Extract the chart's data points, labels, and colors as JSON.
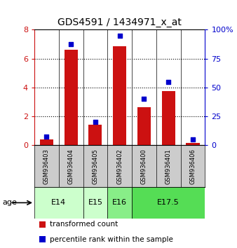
{
  "title": "GDS4591 / 1434971_x_at",
  "samples": [
    "GSM936403",
    "GSM936404",
    "GSM936405",
    "GSM936402",
    "GSM936400",
    "GSM936401",
    "GSM936406"
  ],
  "transformed_count": [
    0.4,
    6.6,
    1.4,
    6.85,
    2.65,
    3.75,
    0.15
  ],
  "percentile_rank": [
    7.5,
    87.5,
    20.0,
    95.0,
    40.0,
    55.0,
    5.0
  ],
  "age_groups": [
    {
      "label": "E14",
      "start": 0,
      "end": 2,
      "color": "#ccffcc"
    },
    {
      "label": "E15",
      "start": 2,
      "end": 3,
      "color": "#ccffcc"
    },
    {
      "label": "E16",
      "start": 3,
      "end": 4,
      "color": "#88ee88"
    },
    {
      "label": "E17.5",
      "start": 4,
      "end": 7,
      "color": "#55dd55"
    }
  ],
  "bar_color": "#cc1111",
  "dot_color": "#0000cc",
  "left_ylim": [
    0,
    8
  ],
  "right_ylim": [
    0,
    100
  ],
  "left_yticks": [
    0,
    2,
    4,
    6,
    8
  ],
  "right_yticks": [
    0,
    25,
    50,
    75,
    100
  ],
  "right_yticklabels": [
    "0",
    "25",
    "50",
    "75",
    "100%"
  ],
  "background_color": "#ffffff",
  "grid_dotted_at": [
    2,
    4,
    6
  ],
  "label_transformed": "transformed count",
  "label_percentile": "percentile rank within the sample",
  "age_label": "age",
  "sample_bg_color": "#cccccc"
}
